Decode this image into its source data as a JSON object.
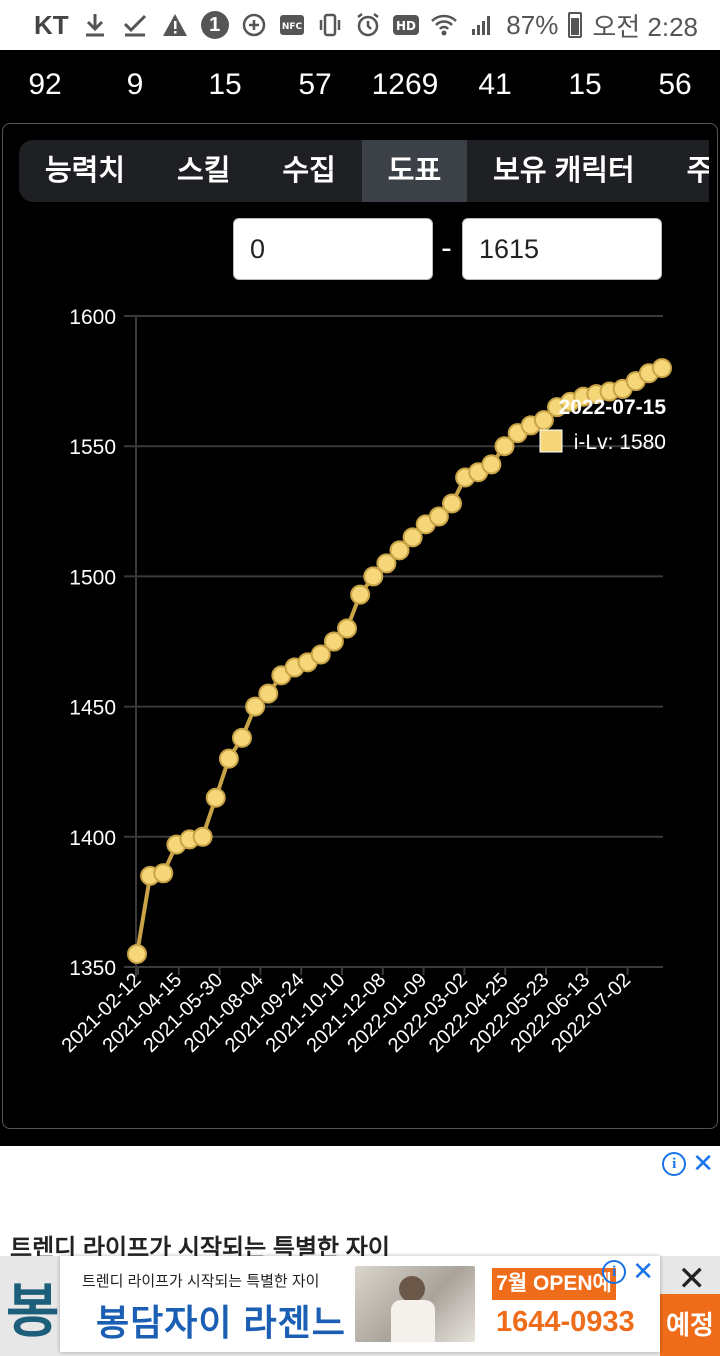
{
  "status_bar": {
    "carrier": "KT",
    "battery": "87%",
    "time": "오전 2:28",
    "badge": "1",
    "left_icons": [
      "download-icon",
      "check-icon",
      "warning-icon"
    ],
    "right_icons": [
      "data-saver-icon",
      "nfc-icon",
      "vibrate-icon",
      "alarm-icon",
      "hd-icon",
      "wifi-icon",
      "signal-icon",
      "battery-icon"
    ]
  },
  "stats": [
    "92",
    "9",
    "15",
    "57",
    "1269",
    "41",
    "15",
    "56"
  ],
  "tabs": [
    {
      "label": "능력치",
      "active": false
    },
    {
      "label": "스킬",
      "active": false
    },
    {
      "label": "수집",
      "active": false
    },
    {
      "label": "도표",
      "active": true
    },
    {
      "label": "보유 캐릭터",
      "active": false
    },
    {
      "label": "주",
      "active": false
    }
  ],
  "range": {
    "min": "0",
    "separator": "-",
    "max": "1615"
  },
  "chart_data": {
    "type": "line",
    "ylim": [
      1350,
      1600
    ],
    "yticks": [
      1350,
      1400,
      1450,
      1500,
      1550,
      1600
    ],
    "xticks": [
      "2021-02-12",
      "2021-04-15",
      "2021-05-30",
      "2021-08-04",
      "2021-09-24",
      "2021-10-10",
      "2021-12-08",
      "2022-01-09",
      "2022-03-02",
      "2022-04-25",
      "2022-05-23",
      "2022-06-13",
      "2022-07-02"
    ],
    "grid": true,
    "series": [
      {
        "name": "i-Lv",
        "color": "#f5d77a",
        "line_color": "#c8a447",
        "values": [
          1355,
          1385,
          1386,
          1397,
          1399,
          1400,
          1415,
          1430,
          1438,
          1450,
          1455,
          1462,
          1465,
          1467,
          1470,
          1475,
          1480,
          1493,
          1500,
          1505,
          1510,
          1515,
          1520,
          1523,
          1528,
          1538,
          1540,
          1543,
          1550,
          1555,
          1558,
          1560,
          1565,
          1567,
          1569,
          1570,
          1571,
          1572,
          1575,
          1578,
          1580
        ]
      }
    ],
    "tooltip": {
      "title": "2022-07-15",
      "label": "i-Lv: 1580"
    }
  },
  "ad": {
    "headline": "트렌디 라이프가 시작되는 특별한 자이",
    "tagline": "트렌디 라이프가 시작되는 특별한 자이",
    "brand": "봉담자이 라젠느",
    "open_label": "7월 OPEN예정",
    "phone": "1644-0933",
    "bg_brand_fragment": "봉",
    "bg_right_fragment": "예정",
    "info_label": "i",
    "close_label": "✕"
  }
}
